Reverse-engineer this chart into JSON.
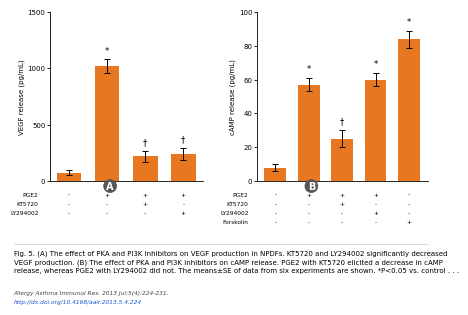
{
  "chart_A": {
    "title": "A",
    "ylabel": "VEGF release (pg/mL)",
    "ylim": [
      0,
      1500
    ],
    "yticks": [
      0,
      500,
      1000,
      1500
    ],
    "bar_values": [
      75,
      1020,
      220,
      240
    ],
    "bar_errors": [
      20,
      60,
      50,
      55
    ],
    "bar_color": "#E87722",
    "symbols": [
      "",
      "*",
      "†",
      "†"
    ],
    "x_labels_rows": [
      [
        "PGE2",
        "-",
        "+",
        "+",
        "+"
      ],
      [
        "KT5720",
        "-",
        "-",
        "+",
        "-"
      ],
      [
        "LY294002",
        "-",
        "-",
        "-",
        "+"
      ]
    ]
  },
  "chart_B": {
    "title": "B",
    "ylabel": "cAMP release (pg/mL)",
    "ylim": [
      0,
      100
    ],
    "yticks": [
      0,
      20,
      40,
      60,
      80,
      100
    ],
    "bar_values": [
      8,
      57,
      25,
      60,
      84
    ],
    "bar_errors": [
      2,
      4,
      5,
      4,
      5
    ],
    "bar_color": "#E87722",
    "symbols": [
      "",
      "*",
      "†",
      "*",
      "*"
    ],
    "x_labels_rows": [
      [
        "PGE2",
        "-",
        "+",
        "+",
        "+",
        "-"
      ],
      [
        "KT5720",
        "-",
        "-",
        "+",
        "-",
        "-"
      ],
      [
        "LY294002",
        "-",
        "-",
        "-",
        "+",
        "-"
      ],
      [
        "Forskolin",
        "-",
        "-",
        "-",
        "-",
        "+"
      ]
    ]
  },
  "bottom_text": {
    "fig_caption": "Fig. 5. (A) The effect of PKA and PI3K inhibitors on VEGF production in NPDFs. KT5720 and LY294002 significantly decreased\nVEGF production. (B) The effect of PKA and PI3K inhibitors on cAMP release. PGE2 with KT5720 elicited a decrease in cAMP\nrelease, whereas PGE2 with LY294002 did not. The means±SE of data from six experiments are shown. *P<0.05 vs. control . . .",
    "journal": "Allergy Asthma Immunol Res. 2013 Jul;5(4):224-231.",
    "doi": "http://dx.doi.org/10.4168/aair.2013.5.4.224"
  },
  "background_color": "#ffffff"
}
